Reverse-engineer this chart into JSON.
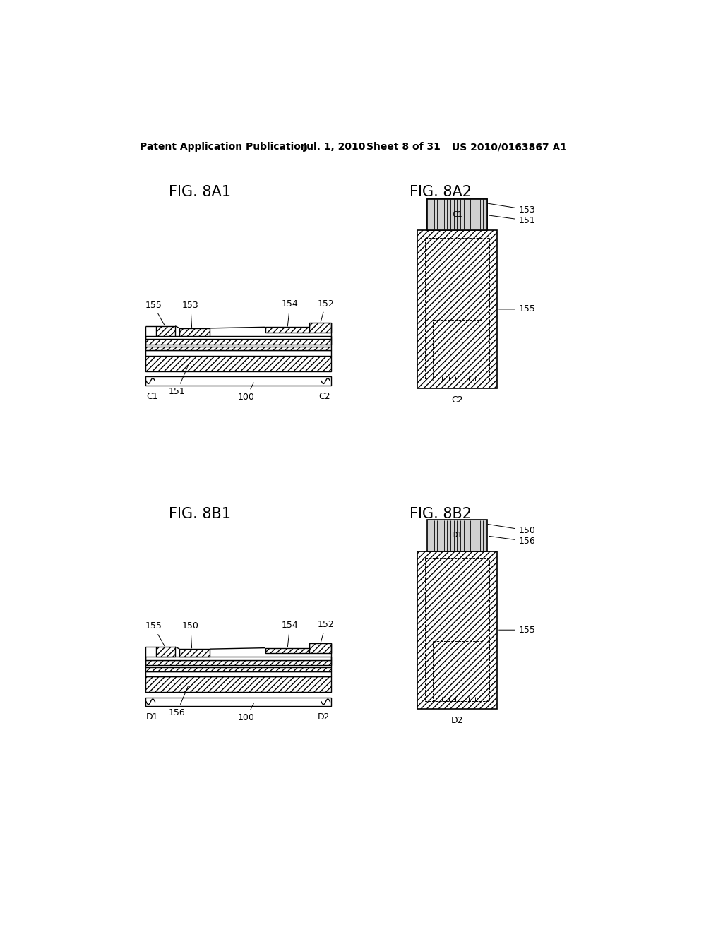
{
  "background_color": "#ffffff",
  "header_text": "Patent Application Publication",
  "header_date": "Jul. 1, 2010",
  "header_sheet": "Sheet 8 of 31",
  "header_patent": "US 2010/0163867 A1",
  "fig_8a1_title": "FIG. 8A1",
  "fig_8a2_title": "FIG. 8A2",
  "fig_8b1_title": "FIG. 8B1",
  "fig_8b2_title": "FIG. 8B2",
  "font_size_header": 10,
  "font_size_fig": 15,
  "font_size_label": 9
}
